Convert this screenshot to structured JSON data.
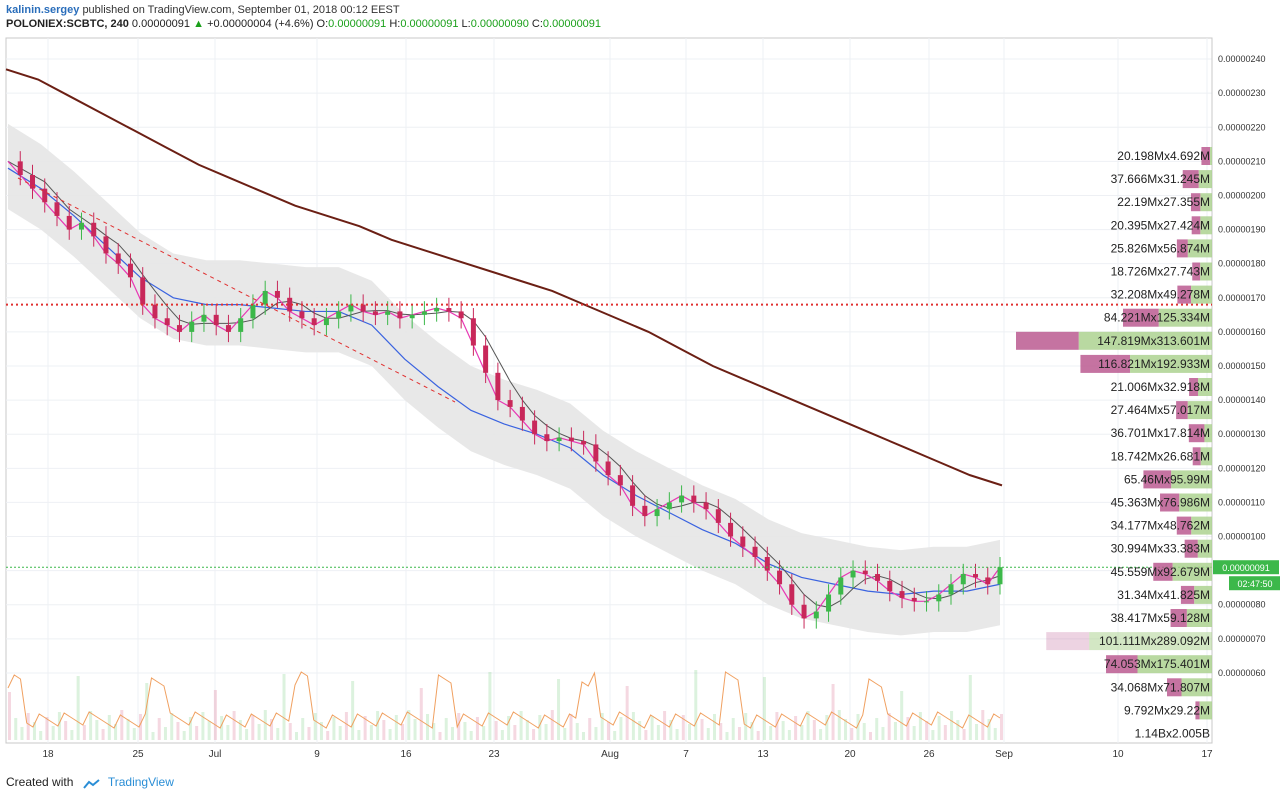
{
  "header": {
    "author": "kalinin.sergey",
    "published_text": "published on TradingView.com, September 01, 2018 00:12 EEST",
    "symbol": "POLONIEX:SCBTC, 240",
    "last": "0.00000091",
    "change": "+0.00000004 (+4.6%)",
    "open_label": "O:",
    "open": "0.00000091",
    "high_label": "H:",
    "high": "0.00000091",
    "low_label": "L:",
    "low": "0.00000090",
    "close_label": "C:",
    "close": "0.00000091"
  },
  "footer": {
    "created_with": "Created with",
    "brand": "TradingView"
  },
  "colors": {
    "up": "#3cb84a",
    "down": "#c8285a",
    "ma200": "#6b1f14",
    "ma_blue": "#3a63e0",
    "ma_pink": "#e838b4",
    "ma_gray": "#555555",
    "band": "#e6e6e6",
    "vp_up": "#a8d08a",
    "vp_down": "#b6508a",
    "volume_line": "#f0a060"
  },
  "chart_data": {
    "type": "candlestick",
    "symbol": "POLONIEX:SCBTC",
    "interval": "240",
    "ylim": [
      5.5e-07,
      2.45e-06
    ],
    "y_ticks": [
      "0.00000240",
      "0.00000230",
      "0.00000220",
      "0.00000210",
      "0.00000200",
      "0.00000190",
      "0.00000180",
      "0.00000170",
      "0.00000160",
      "0.00000150",
      "0.00000140",
      "0.00000130",
      "0.00000120",
      "0.00000110",
      "0.00000100",
      "0.00000090",
      "0.00000080",
      "0.00000070",
      "0.00000060"
    ],
    "x_ticks": [
      "18",
      "25",
      "Jul",
      "9",
      "16",
      "23",
      "Aug",
      "7",
      "13",
      "20",
      "26",
      "Sep",
      "10",
      "17"
    ],
    "last_price_label": "0.00000091",
    "countdown_label": "02:47:50",
    "horizontal_level": 1.68e-06,
    "series": {
      "close": [
        2.1,
        2.06,
        2.02,
        1.98,
        1.94,
        1.9,
        1.92,
        1.88,
        1.83,
        1.8,
        1.76,
        1.68,
        1.64,
        1.62,
        1.6,
        1.63,
        1.65,
        1.62,
        1.6,
        1.64,
        1.68,
        1.72,
        1.7,
        1.66,
        1.64,
        1.62,
        1.64,
        1.66,
        1.68,
        1.66,
        1.65,
        1.66,
        1.64,
        1.65,
        1.66,
        1.67,
        1.66,
        1.64,
        1.56,
        1.48,
        1.4,
        1.38,
        1.34,
        1.3,
        1.28,
        1.29,
        1.28,
        1.27,
        1.22,
        1.18,
        1.15,
        1.09,
        1.06,
        1.08,
        1.1,
        1.12,
        1.1,
        1.08,
        1.04,
        1.0,
        0.97,
        0.94,
        0.9,
        0.86,
        0.8,
        0.76,
        0.78,
        0.83,
        0.88,
        0.9,
        0.89,
        0.87,
        0.84,
        0.82,
        0.81,
        0.81,
        0.83,
        0.86,
        0.89,
        0.88,
        0.86,
        0.91
      ],
      "ma200": [
        2.37,
        2.34,
        2.29,
        2.24,
        2.19,
        2.14,
        2.09,
        2.05,
        2.01,
        1.97,
        1.94,
        1.91,
        1.87,
        1.84,
        1.81,
        1.78,
        1.75,
        1.72,
        1.68,
        1.64,
        1.6,
        1.55,
        1.5,
        1.46,
        1.42,
        1.38,
        1.34,
        1.3,
        1.26,
        1.22,
        1.18,
        1.15
      ],
      "ma_blue": [
        2.08,
        2.02,
        1.94,
        1.85,
        1.76,
        1.7,
        1.68,
        1.68,
        1.67,
        1.66,
        1.66,
        1.62,
        1.52,
        1.44,
        1.37,
        1.33,
        1.3,
        1.26,
        1.18,
        1.12,
        1.07,
        1.02,
        0.98,
        0.92,
        0.88,
        0.86,
        0.84,
        0.83,
        0.84,
        0.84,
        0.86
      ],
      "volume_profile_rows": [
        "20.198Mx4.692M",
        "37.666Mx31.245M",
        "22.19Mx27.355M",
        "20.395Mx27.424M",
        "25.826Mx56.874M",
        "18.726Mx27.743M",
        "32.208Mx49.278M",
        "84.221Mx125.334M",
        "147.819Mx313.601M",
        "116.821Mx192.933M",
        "21.006Mx32.918M",
        "27.464Mx57.017M",
        "36.701Mx17.814M",
        "18.742Mx26.681M",
        "65.46Mx95.99M",
        "45.363Mx76.986M",
        "34.177Mx48.762M",
        "30.994Mx33.383M",
        "45.559Mx92.679M",
        "31.34Mx41.825M",
        "38.417Mx59.128M",
        "101.111Mx289.092M",
        "74.053Mx175.401M",
        "34.068Mx71.807M",
        "9.792Mx29.22M",
        "1.14Bx2.005B"
      ],
      "volume_profile_up": [
        20.198,
        37.666,
        22.19,
        20.395,
        25.826,
        18.726,
        32.208,
        84.221,
        147.819,
        116.821,
        21.006,
        27.464,
        36.701,
        18.742,
        65.46,
        45.363,
        34.177,
        30.994,
        45.559,
        31.34,
        38.417,
        101.111,
        74.053,
        34.068,
        9.792
      ],
      "volume_profile_down": [
        4.692,
        31.245,
        27.355,
        27.424,
        56.874,
        27.743,
        49.278,
        125.334,
        313.601,
        192.933,
        32.918,
        57.017,
        17.814,
        26.681,
        95.99,
        76.986,
        48.762,
        33.383,
        92.679,
        41.825,
        59.128,
        289.092,
        175.401,
        71.807,
        29.22
      ]
    }
  }
}
